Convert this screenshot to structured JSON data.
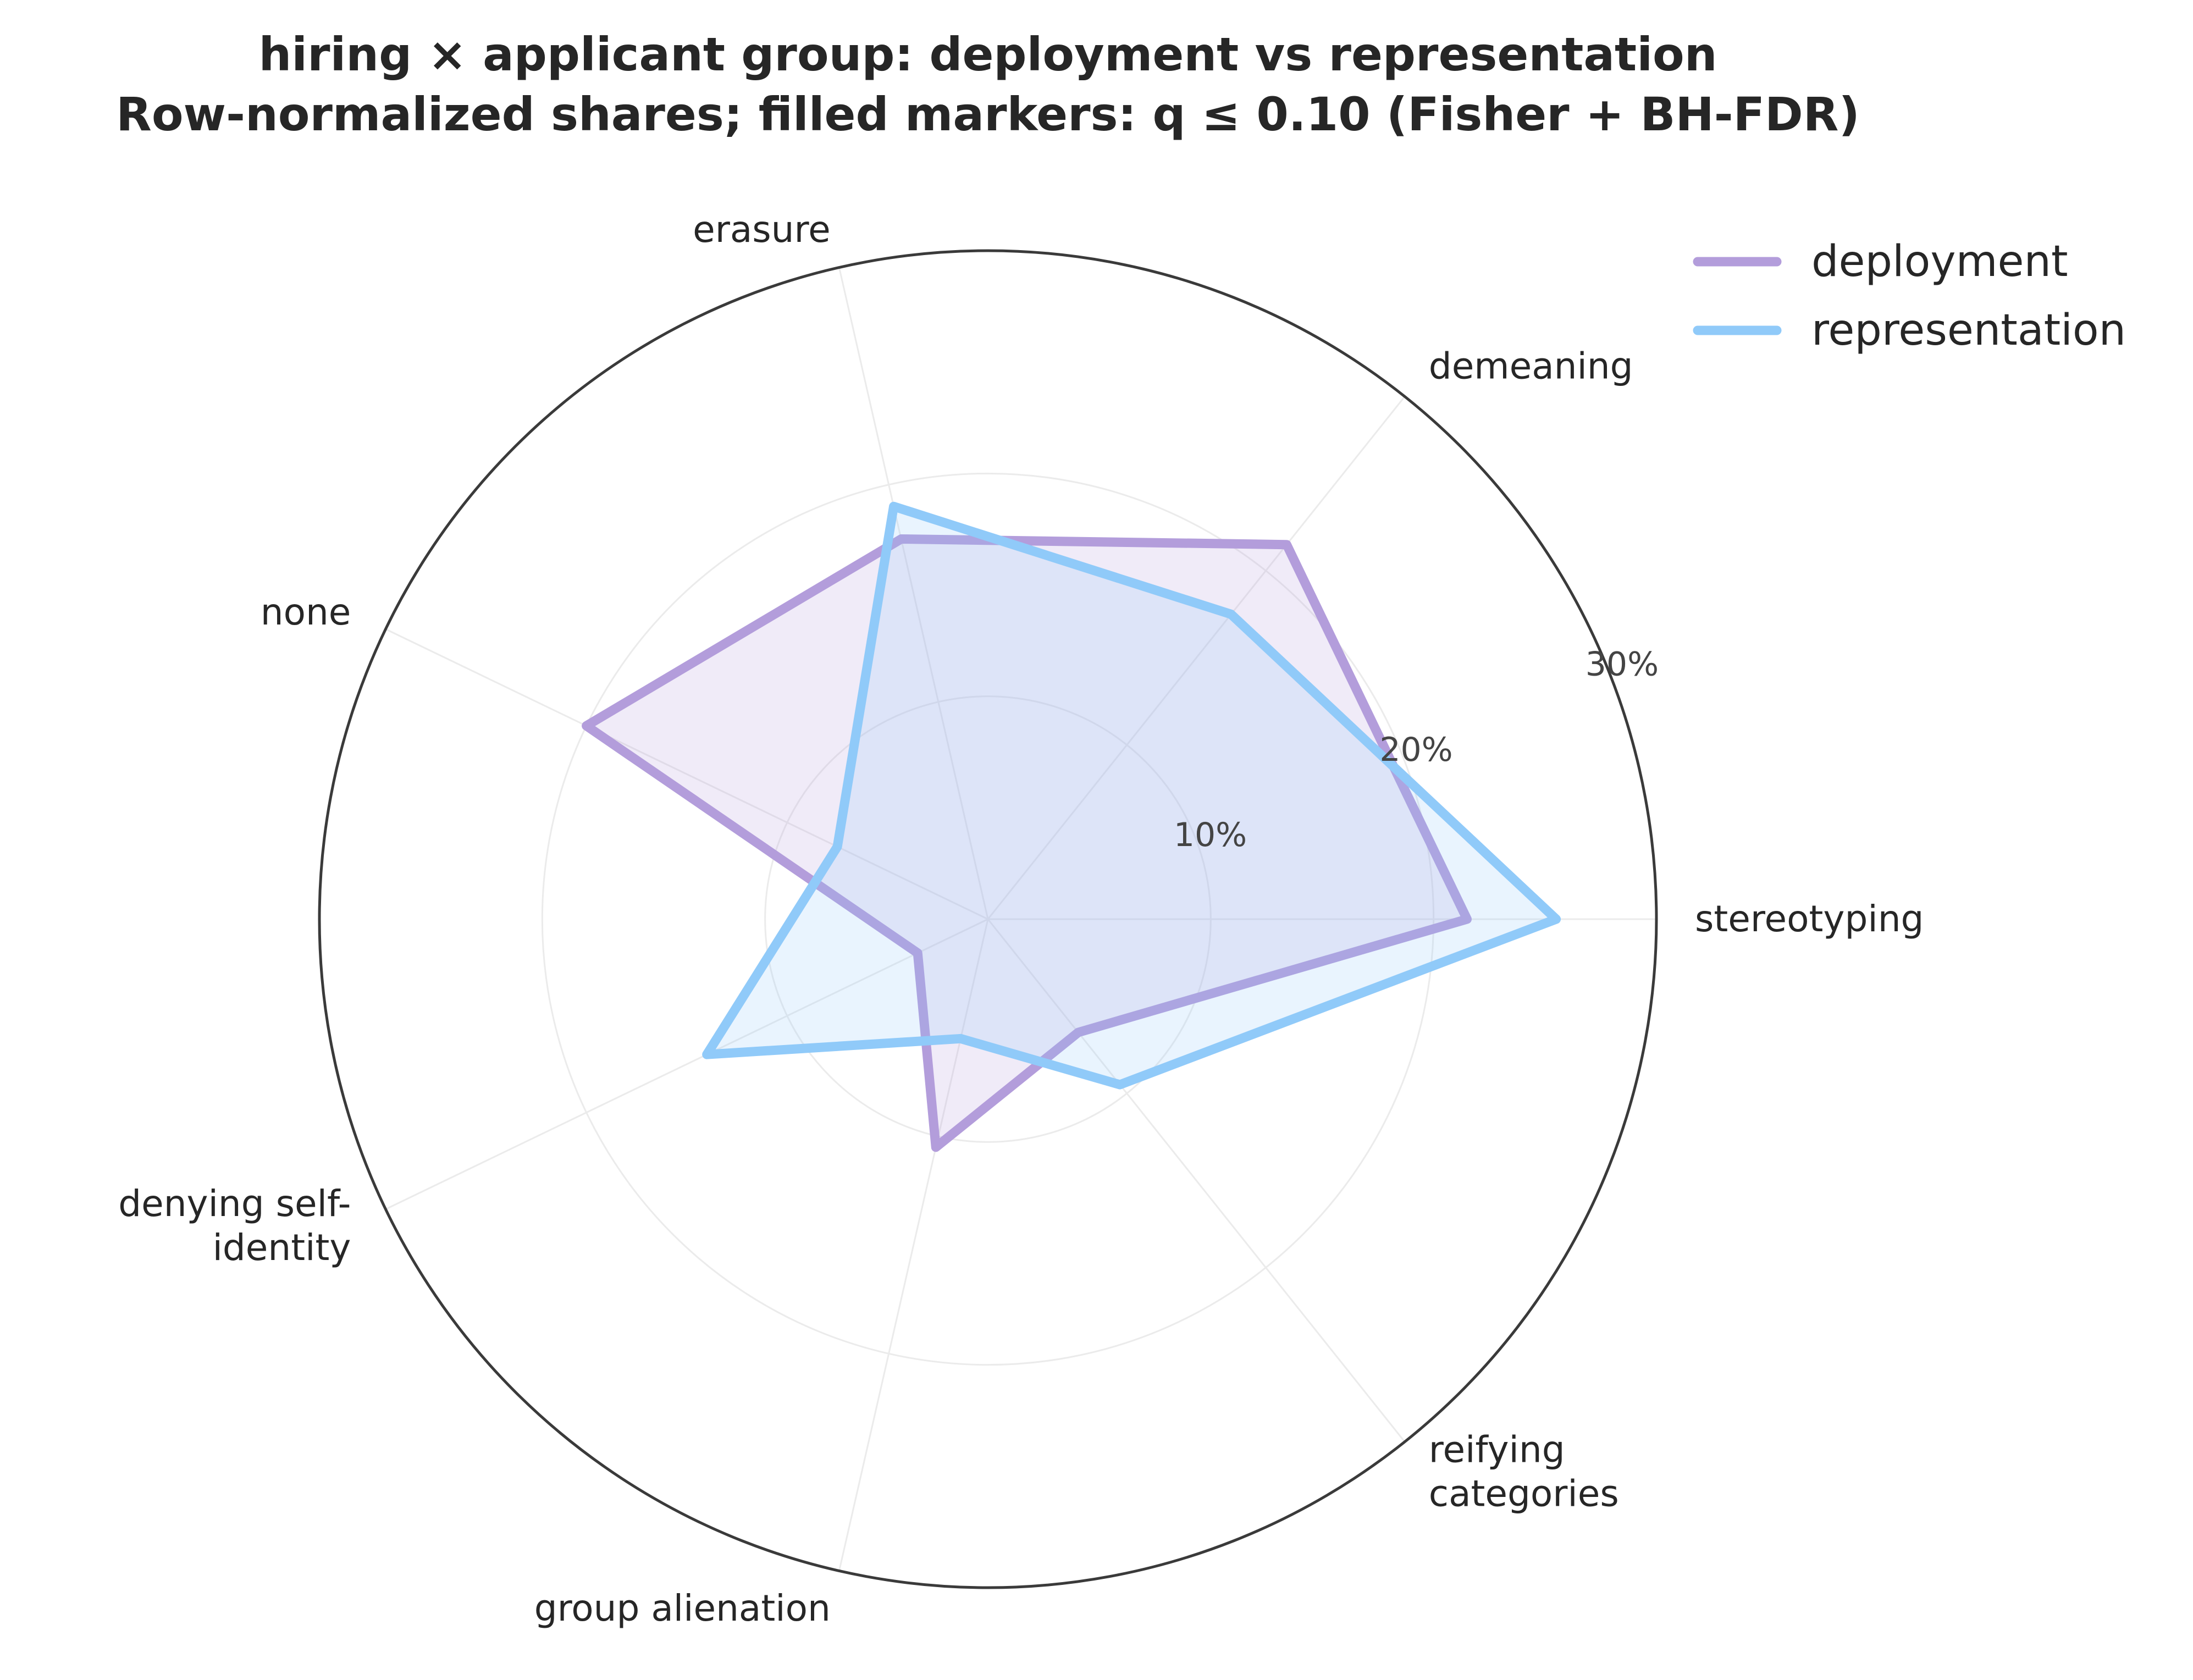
{
  "chart_data": {
    "type": "radar",
    "title": "hiring × applicant group: deployment vs representation",
    "subtitle": "Row-normalized shares; filled markers: q ≤ 0.10 (Fisher + BH-FDR)",
    "categories": [
      "stereotyping",
      "demeaning",
      "erasure",
      "none",
      "denying self-identity",
      "group alienation",
      "reifying categories"
    ],
    "category_lines": [
      [
        "stereotyping"
      ],
      [
        "demeaning"
      ],
      [
        "erasure"
      ],
      [
        "none"
      ],
      [
        "denying self-",
        "identity"
      ],
      [
        "group alienation"
      ],
      [
        "reifying",
        "categories"
      ]
    ],
    "series": [
      {
        "name": "deployment",
        "color": "#b39ddb",
        "values": [
          21.5,
          21.5,
          17.5,
          20.0,
          3.5,
          10.5,
          6.5
        ]
      },
      {
        "name": "representation",
        "color": "#90caf9",
        "values": [
          25.5,
          17.5,
          19.0,
          7.5,
          14.0,
          5.5,
          9.5
        ]
      }
    ],
    "r_ticks": [
      10,
      20,
      30
    ],
    "r_tick_labels": [
      "10%",
      "20%",
      "30%"
    ],
    "rlim": [
      0,
      30
    ],
    "legend_position": "top-right",
    "grid": true
  }
}
